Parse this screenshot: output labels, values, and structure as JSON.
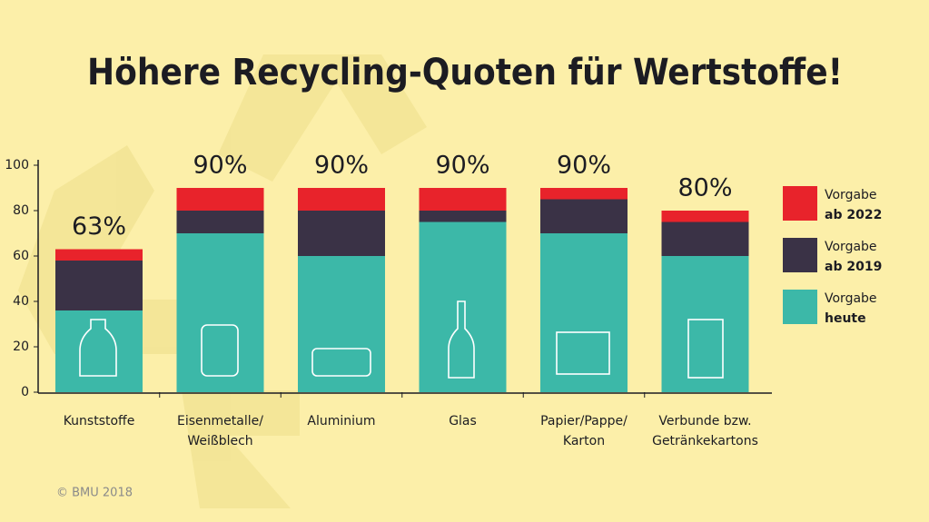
{
  "chart_data": {
    "type": "stacked_bar",
    "title": "Höhere Recycling-Quoten für Wertstoffe!",
    "categories": [
      [
        "Kunststoffe"
      ],
      [
        "Eisenmetalle/",
        "Weißblech"
      ],
      [
        "Aluminium"
      ],
      [
        "Glas"
      ],
      [
        "Papier/Pappe/",
        "Karton"
      ],
      [
        "Verbunde bzw.",
        "Getränkekartons"
      ]
    ],
    "series": [
      {
        "name": [
          "Vorgabe",
          "heute"
        ],
        "color": "#3cb8a8",
        "values": [
          36,
          70,
          60,
          75,
          70,
          60
        ]
      },
      {
        "name": [
          "Vorgabe",
          "ab 2019"
        ],
        "color": "#3a3246",
        "values": [
          22,
          10,
          20,
          5,
          15,
          15
        ]
      },
      {
        "name": [
          "Vorgabe",
          "ab 2022"
        ],
        "color": "#e8232b",
        "values": [
          5,
          10,
          10,
          10,
          5,
          5
        ]
      }
    ],
    "totals": [
      63,
      90,
      90,
      90,
      90,
      80
    ],
    "total_labels": [
      "63%",
      "90%",
      "90%",
      "90%",
      "90%",
      "80%"
    ],
    "ylim": [
      0,
      100
    ],
    "yticks": [
      0,
      20,
      40,
      60,
      80,
      100
    ],
    "source": "© BMU 2018"
  }
}
